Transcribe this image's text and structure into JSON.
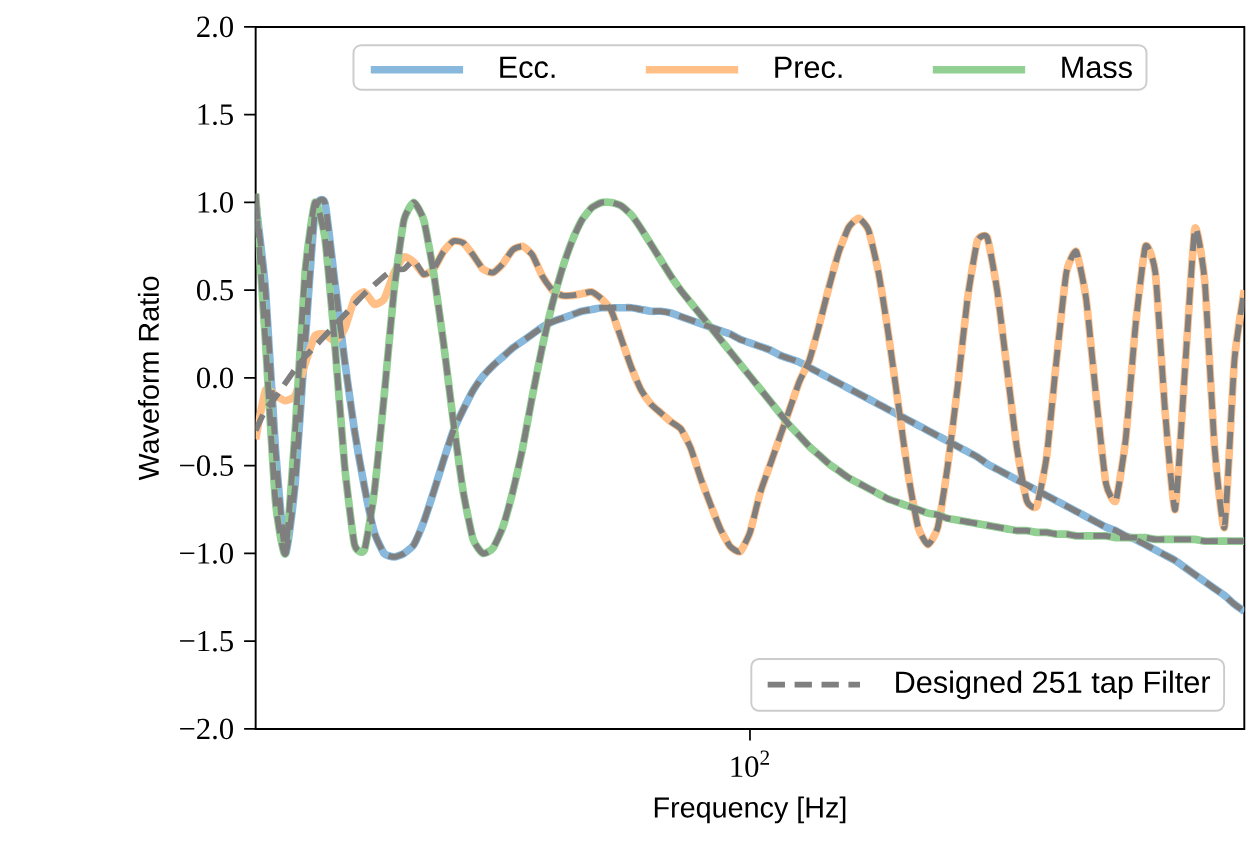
{
  "chart_data": {
    "type": "line",
    "xlabel": "Frequency [Hz]",
    "ylabel": "Waveform Ratio",
    "legend": [
      "top",
      "bottom right"
    ],
    "categories": [
      null,
      null,
      null,
      null,
      null,
      null,
      null,
      null,
      null,
      null,
      null,
      null,
      null,
      null,
      null,
      null,
      null,
      null,
      null,
      null,
      null,
      null,
      null,
      null,
      null,
      null,
      null,
      null,
      null,
      null,
      null,
      null,
      null,
      null,
      null,
      null,
      null,
      null,
      null,
      null,
      null,
      null,
      null,
      null,
      null,
      null,
      null,
      null,
      null,
      null,
      "10$^{2}$",
      null,
      null,
      null,
      null,
      null,
      null,
      null,
      null,
      null,
      null,
      null,
      null,
      null,
      null,
      null,
      null,
      null,
      null,
      null,
      null,
      null,
      null,
      null,
      null,
      null,
      null,
      null,
      null,
      null,
      null,
      null,
      null,
      null,
      null,
      null,
      null,
      null,
      null,
      null,
      null,
      null,
      null,
      null,
      null,
      null,
      null,
      null,
      null,
      null,
      null
    ],
    "ylim": [
      -2.0,
      2.0
    ],
    "yticks": [
      {
        "value": -2.0,
        "label": "−2.0"
      },
      {
        "value": -1.5,
        "label": "−1.5"
      },
      {
        "value": -1.0,
        "label": "−1.0"
      },
      {
        "value": -0.5,
        "label": "−0.5"
      },
      {
        "value": 0.0,
        "label": "0.0"
      },
      {
        "value": 0.5,
        "label": "0.5"
      },
      {
        "value": 1.0,
        "label": "1.0"
      },
      {
        "value": 1.5,
        "label": "1.5"
      },
      {
        "value": 2.0,
        "label": "2.0"
      }
    ],
    "series": [
      {
        "name": "Ecc.",
        "color": "#88b9dc",
        "line_style": "solid",
        "values": [
          1.0,
          0.5,
          -0.4,
          -1.0,
          -0.6,
          0.2,
          0.95,
          1.0,
          0.55,
          0.1,
          -0.3,
          -0.62,
          -0.88,
          -1.0,
          -1.02,
          -1.0,
          -0.95,
          -0.82,
          -0.65,
          -0.47,
          -0.3,
          -0.18,
          -0.07,
          0.01,
          0.07,
          0.12,
          0.17,
          0.21,
          0.25,
          0.29,
          0.32,
          0.34,
          0.36,
          0.38,
          0.39,
          0.4,
          0.4,
          0.4,
          0.4,
          0.39,
          0.38,
          0.38,
          0.37,
          0.35,
          0.33,
          0.31,
          0.29,
          0.27,
          0.25,
          0.22,
          0.2,
          0.18,
          0.16,
          0.13,
          0.11,
          0.09,
          0.06,
          0.03,
          0.0,
          -0.03,
          -0.06,
          -0.09,
          -0.12,
          -0.15,
          -0.18,
          -0.21,
          -0.24,
          -0.27,
          -0.3,
          -0.33,
          -0.36,
          -0.39,
          -0.42,
          -0.45,
          -0.49,
          -0.52,
          -0.55,
          -0.58,
          -0.61,
          -0.64,
          -0.67,
          -0.7,
          -0.73,
          -0.76,
          -0.79,
          -0.82,
          -0.85,
          -0.87,
          -0.9,
          -0.92,
          -0.95,
          -0.98,
          -1.01,
          -1.04,
          -1.08,
          -1.12,
          -1.16,
          -1.2,
          -1.24,
          -1.29,
          -1.33
        ]
      },
      {
        "name": "Prec.",
        "color": "#ffbf86",
        "line_style": "solid",
        "values": [
          -0.35,
          -0.07,
          -0.1,
          -0.13,
          -0.1,
          0.08,
          0.24,
          0.25,
          0.21,
          0.28,
          0.45,
          0.49,
          0.42,
          0.45,
          0.6,
          0.69,
          0.66,
          0.59,
          0.62,
          0.72,
          0.78,
          0.77,
          0.7,
          0.62,
          0.6,
          0.65,
          0.73,
          0.75,
          0.7,
          0.58,
          0.5,
          0.47,
          0.47,
          0.48,
          0.49,
          0.45,
          0.38,
          0.22,
          0.06,
          -0.07,
          -0.15,
          -0.2,
          -0.25,
          -0.29,
          -0.4,
          -0.57,
          -0.72,
          -0.86,
          -0.96,
          -0.99,
          -0.88,
          -0.66,
          -0.5,
          -0.34,
          -0.18,
          -0.02,
          0.1,
          0.3,
          0.52,
          0.72,
          0.86,
          0.91,
          0.84,
          0.6,
          0.25,
          -0.15,
          -0.55,
          -0.85,
          -0.95,
          -0.85,
          -0.5,
          -0.05,
          0.45,
          0.78,
          0.8,
          0.5,
          0.05,
          -0.4,
          -0.7,
          -0.73,
          -0.45,
          0.1,
          0.6,
          0.72,
          0.45,
          -0.1,
          -0.6,
          -0.7,
          -0.35,
          0.3,
          0.75,
          0.6,
          -0.2,
          -0.75,
          0.05,
          0.85,
          0.55,
          -0.4,
          -0.85,
          0.1,
          0.5
        ]
      },
      {
        "name": "Mass",
        "color": "#92cf92",
        "line_style": "solid",
        "values": [
          1.05,
          0.2,
          -0.7,
          -1.0,
          -0.3,
          0.6,
          1.0,
          0.8,
          0.2,
          -0.5,
          -0.95,
          -0.98,
          -0.65,
          -0.1,
          0.5,
          0.9,
          1.0,
          0.9,
          0.6,
          0.2,
          -0.25,
          -0.65,
          -0.92,
          -1.0,
          -0.97,
          -0.85,
          -0.65,
          -0.4,
          -0.1,
          0.18,
          0.42,
          0.62,
          0.78,
          0.9,
          0.97,
          1.0,
          1.0,
          0.98,
          0.93,
          0.85,
          0.76,
          0.67,
          0.58,
          0.5,
          0.43,
          0.36,
          0.29,
          0.22,
          0.15,
          0.08,
          0.01,
          -0.06,
          -0.13,
          -0.2,
          -0.27,
          -0.33,
          -0.39,
          -0.44,
          -0.49,
          -0.53,
          -0.57,
          -0.6,
          -0.63,
          -0.66,
          -0.69,
          -0.71,
          -0.73,
          -0.75,
          -0.77,
          -0.78,
          -0.8,
          -0.81,
          -0.82,
          -0.83,
          -0.84,
          -0.85,
          -0.86,
          -0.87,
          -0.87,
          -0.88,
          -0.88,
          -0.89,
          -0.89,
          -0.9,
          -0.9,
          -0.9,
          -0.9,
          -0.91,
          -0.91,
          -0.91,
          -0.91,
          -0.92,
          -0.92,
          -0.92,
          -0.92,
          -0.92,
          -0.93,
          -0.93,
          -0.93,
          -0.93,
          -0.93
        ]
      },
      {
        "name": "Designed 251 tap Filter",
        "color": "#7f7f7f",
        "line_style": "dashed",
        "values": [
          1.0,
          0.5,
          -0.4,
          -1.0,
          -0.6,
          0.2,
          0.95,
          1.0,
          0.55,
          0.1,
          -0.3,
          -0.62,
          -0.88,
          -1.0,
          -1.02,
          -1.0,
          -0.95,
          -0.82,
          -0.65,
          -0.47,
          -0.3,
          -0.18,
          -0.07,
          0.01,
          0.07,
          0.12,
          0.17,
          0.21,
          0.25,
          0.29,
          0.32,
          0.34,
          0.36,
          0.38,
          0.39,
          0.4,
          0.4,
          0.4,
          0.4,
          0.39,
          0.38,
          0.38,
          0.37,
          0.35,
          0.33,
          0.31,
          0.29,
          0.27,
          0.25,
          0.22,
          0.2,
          0.18,
          0.16,
          0.13,
          0.11,
          0.09,
          0.06,
          0.03,
          0.0,
          -0.03,
          -0.06,
          -0.09,
          -0.12,
          -0.15,
          -0.18,
          -0.21,
          -0.24,
          -0.27,
          -0.3,
          -0.33,
          -0.36,
          -0.39,
          -0.42,
          -0.45,
          -0.49,
          -0.52,
          -0.55,
          -0.58,
          -0.61,
          -0.64,
          -0.67,
          -0.7,
          -0.73,
          -0.76,
          -0.79,
          -0.82,
          -0.85,
          -0.87,
          -0.9,
          -0.92,
          -0.95,
          -0.98,
          -1.01,
          -1.04,
          -1.08,
          -1.12,
          -1.16,
          -1.2,
          -1.24,
          -1.29,
          -1.33
        ]
      },
      {
        "color": "#7f7f7f",
        "line_style": "dashed",
        "values": [
          -0.3,
          -0.18,
          -0.11,
          -0.03,
          0.05,
          0.12,
          0.18,
          0.24,
          0.3,
          0.36,
          0.42,
          0.48,
          0.53,
          0.58,
          0.62,
          0.62,
          0.67,
          0.59,
          0.62,
          0.72,
          0.78,
          0.77,
          0.7,
          0.62,
          0.6,
          0.65,
          0.73,
          0.75,
          0.7,
          0.58,
          0.5,
          0.47,
          0.47,
          0.48,
          0.49,
          0.45,
          0.38,
          0.22,
          0.06,
          -0.07,
          -0.15,
          -0.2,
          -0.25,
          -0.29,
          -0.4,
          -0.57,
          -0.72,
          -0.86,
          -0.96,
          -0.99,
          -0.88,
          -0.66,
          -0.5,
          -0.34,
          -0.18,
          -0.02,
          0.1,
          0.3,
          0.52,
          0.72,
          0.86,
          0.91,
          0.84,
          0.6,
          0.25,
          -0.15,
          -0.55,
          -0.85,
          -0.95,
          -0.85,
          -0.5,
          -0.05,
          0.45,
          0.78,
          0.8,
          0.5,
          0.05,
          -0.4,
          -0.7,
          -0.73,
          -0.45,
          0.1,
          0.6,
          0.72,
          0.45,
          -0.1,
          -0.6,
          -0.7,
          -0.35,
          0.3,
          0.75,
          0.6,
          -0.2,
          -0.75,
          0.05,
          0.85,
          0.55,
          -0.4,
          -0.85,
          0.1,
          0.5
        ]
      },
      {
        "color": "#7f7f7f",
        "line_style": "dashed",
        "values": [
          1.05,
          0.2,
          -0.7,
          -1.0,
          -0.3,
          0.6,
          1.0,
          0.8,
          0.2,
          -0.5,
          -0.95,
          -0.98,
          -0.65,
          -0.1,
          0.5,
          0.9,
          1.0,
          0.9,
          0.6,
          0.2,
          -0.25,
          -0.65,
          -0.92,
          -1.0,
          -0.97,
          -0.85,
          -0.65,
          -0.4,
          -0.1,
          0.18,
          0.42,
          0.62,
          0.78,
          0.9,
          0.97,
          1.0,
          1.0,
          0.98,
          0.93,
          0.85,
          0.76,
          0.67,
          0.58,
          0.5,
          0.43,
          0.36,
          0.29,
          0.22,
          0.15,
          0.08,
          0.01,
          -0.06,
          -0.13,
          -0.2,
          -0.27,
          -0.33,
          -0.39,
          -0.44,
          -0.49,
          -0.53,
          -0.57,
          -0.6,
          -0.63,
          -0.66,
          -0.69,
          -0.71,
          -0.73,
          -0.75,
          -0.77,
          -0.78,
          -0.8,
          -0.81,
          -0.82,
          -0.83,
          -0.84,
          -0.85,
          -0.86,
          -0.87,
          -0.87,
          -0.88,
          -0.88,
          -0.89,
          -0.89,
          -0.9,
          -0.9,
          -0.9,
          -0.9,
          -0.91,
          -0.91,
          -0.91,
          -0.91,
          -0.92,
          -0.92,
          -0.92,
          -0.92,
          -0.92,
          -0.93,
          -0.93,
          -0.93,
          -0.93,
          -0.93
        ]
      }
    ]
  }
}
